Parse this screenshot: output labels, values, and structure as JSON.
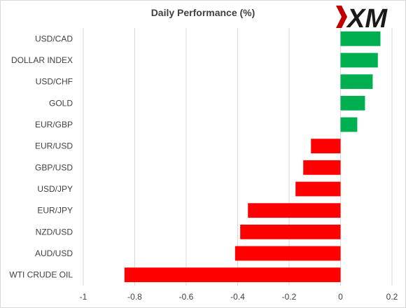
{
  "brand": {
    "logo_text": "XM"
  },
  "chart_data": {
    "type": "bar",
    "orientation": "horizontal",
    "title": "Daily Performance  (%)",
    "xlabel": "",
    "ylabel": "",
    "xlim": [
      -1,
      0.2
    ],
    "xticks": [
      -1,
      -0.8,
      -0.6,
      -0.4,
      -0.2,
      0,
      0.2
    ],
    "xtick_labels": [
      "-1",
      "-0.8",
      "-0.6",
      "-0.4",
      "-0.2",
      "0",
      "0.2"
    ],
    "grid": true,
    "legend": "none",
    "categories": [
      "USD/CAD",
      "DOLLAR INDEX",
      "USD/CHF",
      "GOLD",
      "EUR/GBP",
      "EUR/USD",
      "GBP/USD",
      "USD/JPY",
      "EUR/JPY",
      "NZD/USD",
      "AUD/USD",
      "WTI CRUDE OIL"
    ],
    "values": [
      0.155,
      0.145,
      0.125,
      0.095,
      0.065,
      -0.115,
      -0.145,
      -0.175,
      -0.36,
      -0.39,
      -0.41,
      -0.84
    ],
    "colors": {
      "positive": "#00b050",
      "negative": "#ff0000",
      "grid": "#d9d9d9",
      "text": "#404040"
    }
  }
}
